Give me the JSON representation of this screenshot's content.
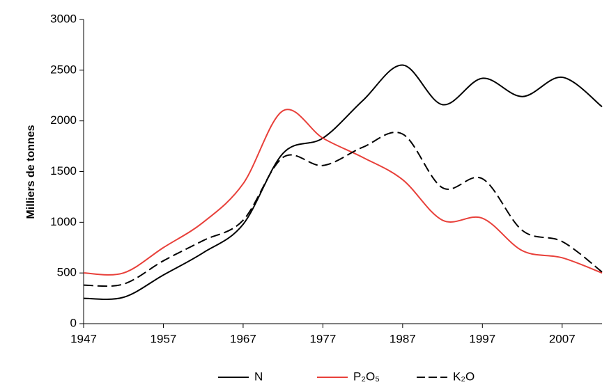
{
  "chart_data": {
    "type": "line",
    "y_label": "Milliers de tonnes",
    "x": [
      1947,
      1952,
      1957,
      1962,
      1967,
      1972,
      1977,
      1982,
      1987,
      1992,
      1997,
      2002,
      2007,
      2012
    ],
    "series": [
      {
        "name": "N",
        "color": "#000000",
        "dash": false,
        "values": [
          250,
          260,
          480,
          700,
          980,
          1680,
          1830,
          2200,
          2550,
          2160,
          2420,
          2240,
          2430,
          2140
        ]
      },
      {
        "name": "P₂O₅",
        "color": "#e8403a",
        "dash": false,
        "values": [
          500,
          500,
          750,
          1000,
          1380,
          2100,
          1830,
          1640,
          1420,
          1020,
          1040,
          720,
          650,
          500
        ]
      },
      {
        "name": "K₂O",
        "color": "#000000",
        "dash": true,
        "values": [
          380,
          390,
          620,
          820,
          1020,
          1640,
          1560,
          1740,
          1870,
          1340,
          1430,
          920,
          810,
          510
        ]
      }
    ],
    "xlim": [
      1947,
      2012
    ],
    "xticks": [
      1947,
      1957,
      1967,
      1977,
      1987,
      1997,
      2007
    ],
    "ylim": [
      0,
      3000
    ],
    "yticks": [
      0,
      500,
      1000,
      1500,
      2000,
      2500,
      3000
    ],
    "grid": false,
    "legend": "bottom"
  }
}
